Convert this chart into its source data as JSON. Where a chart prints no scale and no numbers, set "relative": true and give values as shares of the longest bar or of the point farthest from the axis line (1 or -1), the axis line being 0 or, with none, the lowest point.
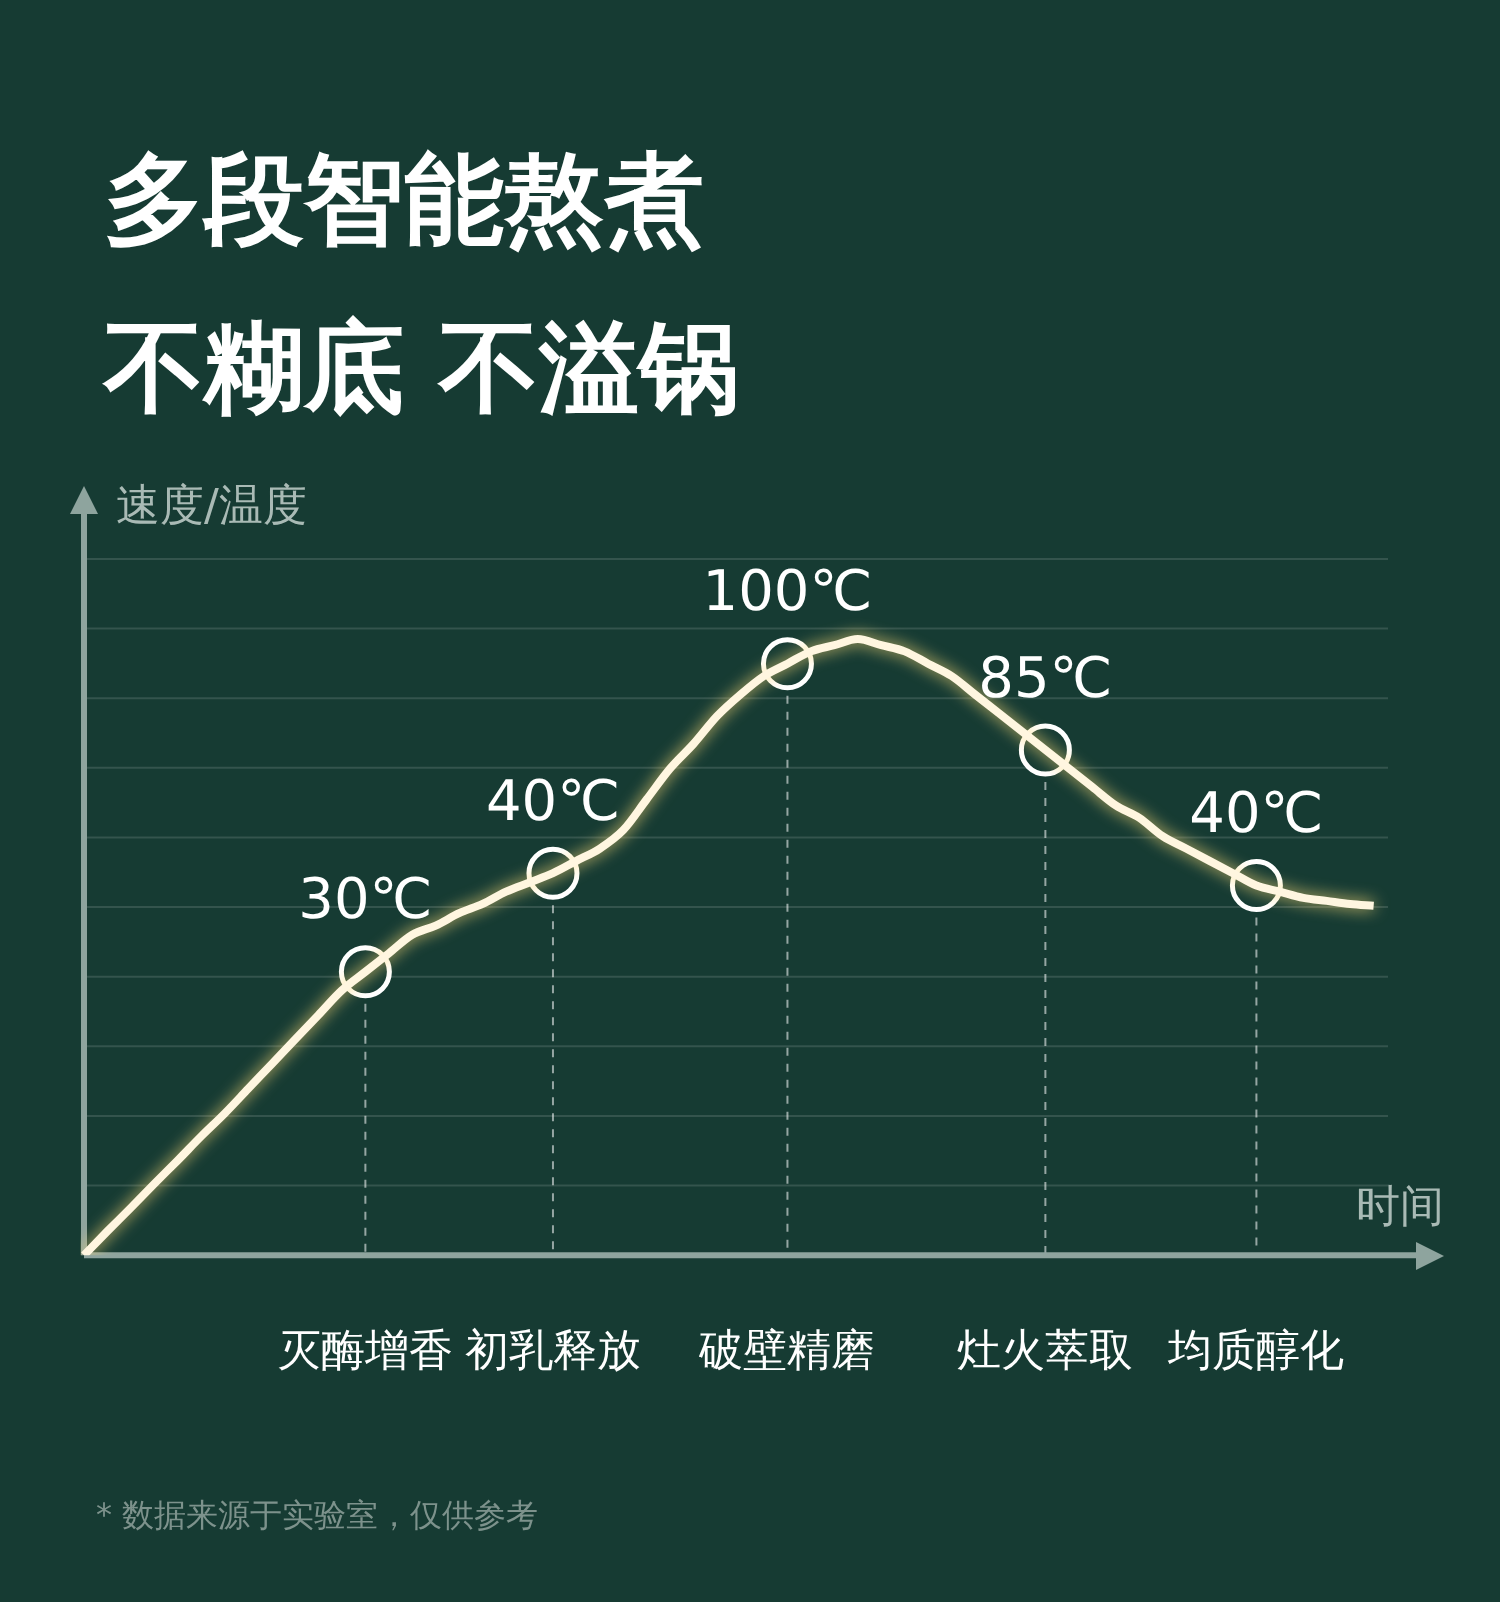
{
  "chart_data": {
    "type": "line",
    "title": "多段智能熬煮",
    "subtitle": "不糊底 不溢锅",
    "xlabel": "时间",
    "ylabel": "速度/温度",
    "relative": true,
    "grid": true,
    "legend": false,
    "categories": [
      null,
      null,
      null,
      null,
      null,
      null,
      null,
      null,
      null,
      null,
      null,
      null,
      "灭酶增香",
      null,
      null,
      null,
      null,
      null,
      null,
      null,
      "初乳释放",
      null,
      null,
      null,
      null,
      null,
      null,
      null,
      null,
      null,
      "破壁精磨",
      null,
      null,
      null,
      null,
      null,
      null,
      null,
      null,
      null,
      null,
      "灶火萃取",
      null,
      null,
      null,
      null,
      null,
      null,
      null,
      null,
      "均质醇化",
      null,
      null,
      null,
      null,
      null,
      null,
      null,
      null
    ],
    "series": [
      {
        "color": "#fff6e0",
        "marker": "none",
        "values": [
          0,
          0.039,
          0.077,
          0.116,
          0.154,
          0.193,
          0.23,
          0.27,
          0.31,
          0.35,
          0.39,
          0.43,
          0.46,
          0.49,
          0.52,
          0.535,
          0.555,
          0.57,
          0.59,
          0.605,
          0.62,
          0.64,
          0.66,
          0.69,
          0.74,
          0.79,
          0.83,
          0.875,
          0.91,
          0.94,
          0.96,
          0.98,
          0.99,
          1,
          0.99,
          0.98,
          0.96,
          0.94,
          0.91,
          0.88,
          0.85,
          0.82,
          0.79,
          0.76,
          0.73,
          0.71,
          0.68,
          0.66,
          0.64,
          0.62,
          0.6,
          0.59,
          0.58,
          0.575,
          0.57,
          0.567,
          null,
          null,
          null
        ]
      },
      {
        "type": "scatter",
        "color": "#ffffff",
        "marker": "circle",
        "values": [
          null,
          null,
          null,
          null,
          null,
          null,
          null,
          null,
          null,
          null,
          null,
          null,
          0.46,
          null,
          null,
          null,
          null,
          null,
          null,
          null,
          0.62,
          null,
          null,
          null,
          null,
          null,
          null,
          null,
          null,
          null,
          0.96,
          null,
          null,
          null,
          null,
          null,
          null,
          null,
          null,
          null,
          null,
          0.82,
          null,
          null,
          null,
          null,
          null,
          null,
          null,
          null,
          0.6,
          null,
          null,
          null,
          null,
          null,
          null,
          null,
          null
        ]
      }
    ],
    "annotations": [
      {
        "text": "30℃",
        "x": "灭酶增香",
        "y": 0.46
      },
      {
        "text": "40℃",
        "x": "初乳释放",
        "y": 0.62
      },
      {
        "text": "100℃",
        "x": "破壁精磨",
        "y": 0.96
      },
      {
        "text": "85℃",
        "x": "灶火萃取",
        "y": 0.82
      },
      {
        "text": "40℃",
        "x": "均质醇化",
        "y": 0.6
      },
      "* 数据来源于实验室，仅供参考"
    ]
  }
}
